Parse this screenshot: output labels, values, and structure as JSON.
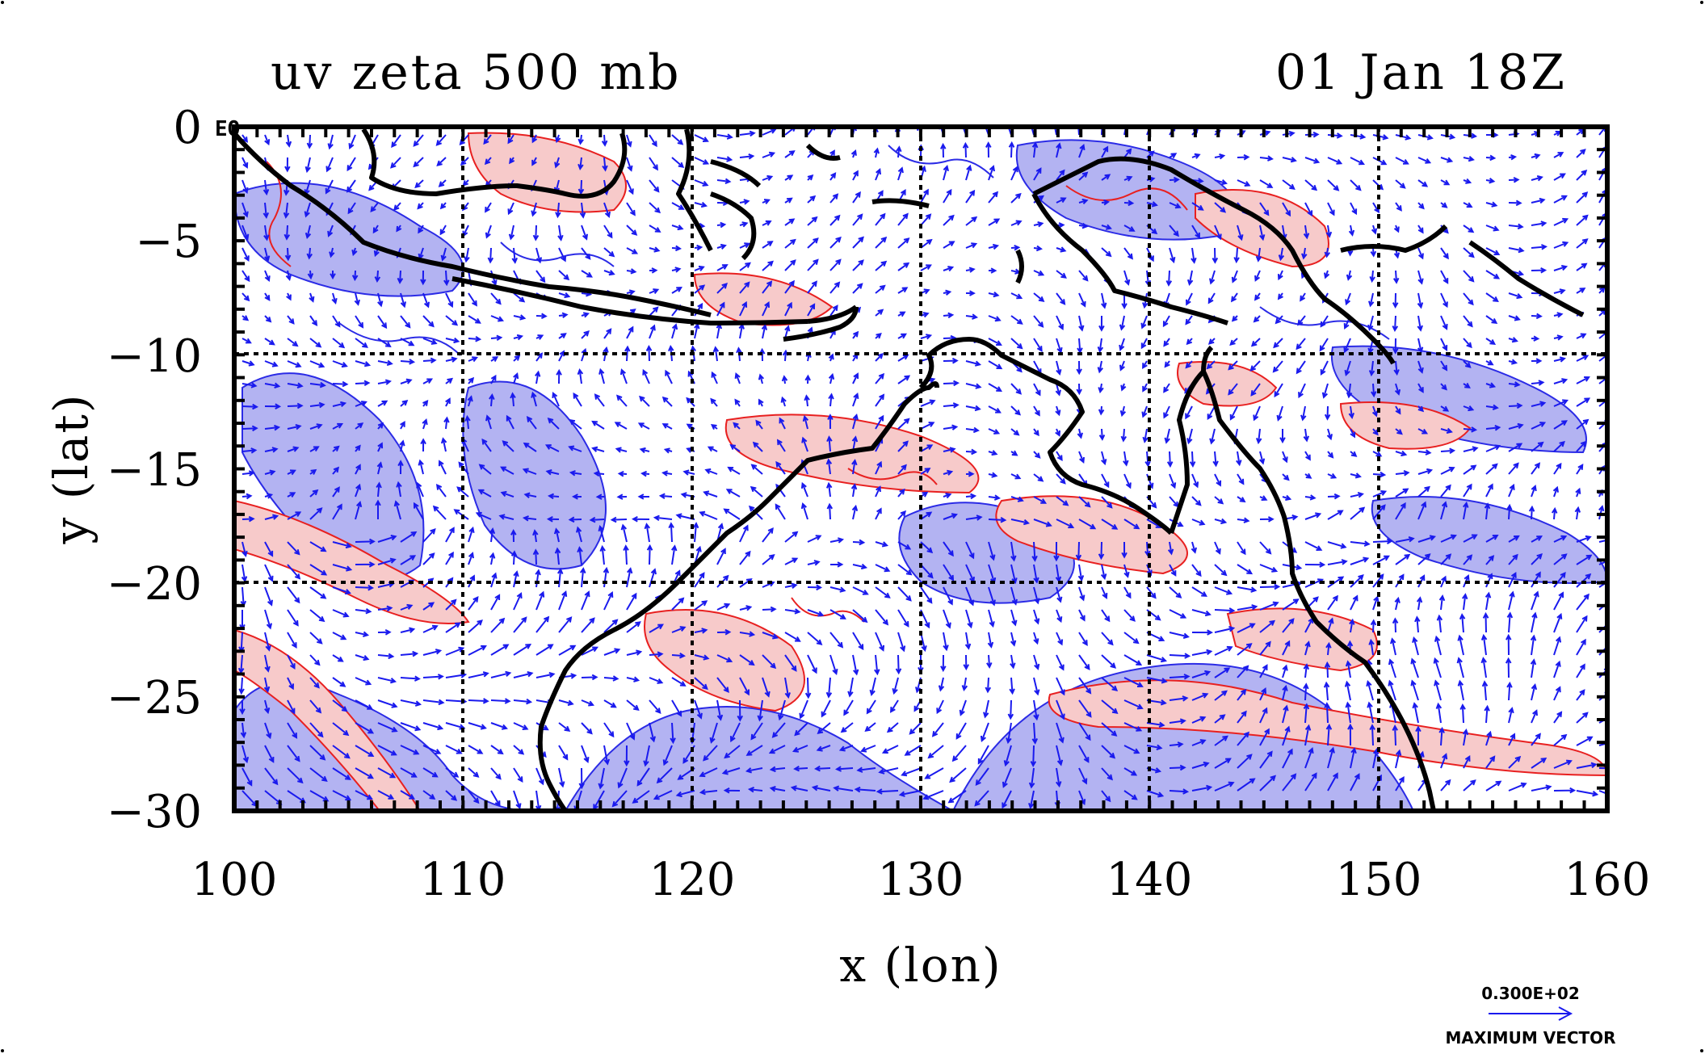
{
  "title_left": "uv zeta 500 mb",
  "title_right": "01 Jan 18Z",
  "x_axis": {
    "label": "x (lon)",
    "ticks": [
      "100",
      "110",
      "120",
      "130",
      "140",
      "150",
      "160"
    ],
    "range": [
      100,
      160
    ]
  },
  "y_axis": {
    "label": "y (lat)",
    "ticks": [
      "0",
      "−5",
      "−10",
      "−15",
      "−20",
      "−25",
      "−30"
    ],
    "range": [
      -30,
      0
    ]
  },
  "equator_label": "EQ",
  "legend": {
    "value_label": "0.300E+02",
    "caption": "MAXIMUM VECTOR"
  },
  "colors": {
    "positive_fill": "#f7caca",
    "positive_contour": "#e82020",
    "negative_fill": "#b3b3f2",
    "negative_contour": "#2020e0",
    "vector": "#1a1aee",
    "coastline": "#000000",
    "gridline": "#000000"
  }
}
